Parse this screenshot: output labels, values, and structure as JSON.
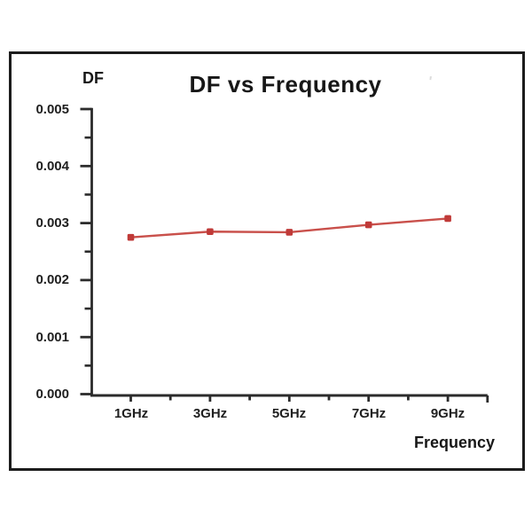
{
  "chart_data": {
    "type": "line",
    "title": "DF vs Frequency",
    "ylabel": "DF",
    "xlabel": "Frequency",
    "categories": [
      "1GHz",
      "3GHz",
      "5GHz",
      "7GHz",
      "9GHz"
    ],
    "values": [
      0.00275,
      0.00285,
      0.00284,
      0.00297,
      0.00308
    ],
    "y_tick_labels": [
      "0.005",
      "0.004",
      "0.003",
      "0.002",
      "0.001",
      "0.000"
    ],
    "ylim": [
      0,
      0.005
    ],
    "minor_ticks": true,
    "grid": false,
    "legend_position": "none",
    "marker_shape": "square",
    "colors": {
      "line": "#c9504b",
      "marker": "#c03a38",
      "axis": "#2b2b2b",
      "text": "#1f1f1f",
      "frame": "#1c1c1c"
    }
  },
  "faint_mark": "'"
}
